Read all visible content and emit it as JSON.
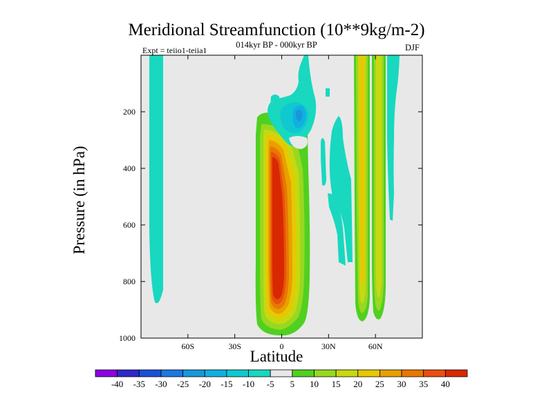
{
  "chart_data": {
    "type": "heatmap",
    "title": "Meridional Streamfunction (10**9kg/m-2)",
    "subtitle": "014kyr BP - 000kyr BP",
    "annotation_left": "Expt = teiio1-teiia1",
    "annotation_right": "DJF",
    "xlabel": "Latitude",
    "ylabel": "Pressure (in hPa)",
    "xlim": [
      -90,
      90
    ],
    "ylim": [
      1000,
      0
    ],
    "x_ticks": [
      -60,
      -30,
      0,
      30,
      60
    ],
    "x_tick_labels": [
      "60S",
      "30S",
      "0",
      "30N",
      "60N"
    ],
    "y_ticks": [
      200,
      400,
      600,
      800,
      1000
    ],
    "y_tick_labels": [
      "200",
      "400",
      "600",
      "800",
      "1000"
    ],
    "background_color": "#e8e8e8",
    "colorbar": {
      "position": "bottom",
      "labels": [
        "-40",
        "-35",
        "-30",
        "-25",
        "-20",
        "-15",
        "-10",
        "-5",
        "5",
        "10",
        "15",
        "20",
        "25",
        "30",
        "35",
        "40"
      ],
      "colors": [
        "#8a00e0",
        "#3028c8",
        "#1850d8",
        "#1c78e0",
        "#1898d8",
        "#10b0e0",
        "#10c8d0",
        "#18d8c0",
        "#e8e8e8",
        "#50d020",
        "#98d820",
        "#c8d810",
        "#e8c800",
        "#e8a000",
        "#e87800",
        "#e85010",
        "#d82800"
      ]
    },
    "features": [
      {
        "name": "southern-high-latitude-negative-cell",
        "lat": [
          -80,
          -72
        ],
        "pressure": [
          0,
          870
        ],
        "peak": -7
      },
      {
        "name": "equatorial-positive-cell",
        "lat": [
          -17,
          13
        ],
        "pressure": [
          190,
          1000
        ],
        "peak": 40
      },
      {
        "name": "upper-equatorial-negative-cell",
        "lat": [
          -5,
          22
        ],
        "pressure": [
          60,
          270
        ],
        "peak": -20
      },
      {
        "name": "northern-midlatitude-negative-bands",
        "lat": [
          27,
          43
        ],
        "pressure": [
          160,
          870
        ],
        "peak": -7
      },
      {
        "name": "northern-positive-column-a",
        "lat": [
          48,
          56
        ],
        "pressure": [
          0,
          960
        ],
        "peak": 22
      },
      {
        "name": "northern-positive-column-b",
        "lat": [
          59,
          66
        ],
        "pressure": [
          0,
          940
        ],
        "peak": 12
      },
      {
        "name": "northern-high-latitude-negative-column",
        "lat": [
          67,
          76
        ],
        "pressure": [
          0,
          600
        ],
        "peak": -7
      }
    ]
  }
}
